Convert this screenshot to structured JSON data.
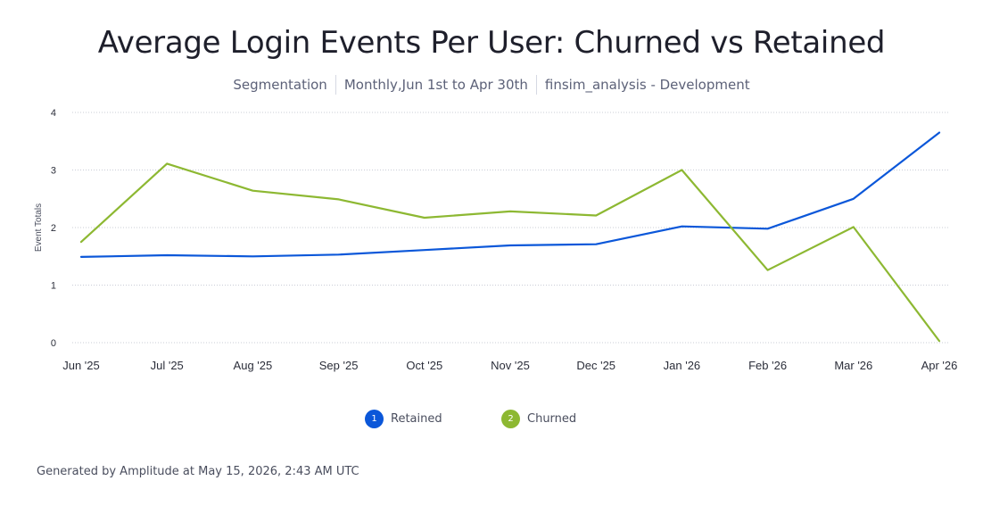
{
  "header": {
    "title": "Average Login Events Per User: Churned vs Retained",
    "subtitle_items": [
      "Segmentation",
      "Monthly,Jun 1st to Apr 30th",
      "finsim_analysis - Development"
    ]
  },
  "chart_data": {
    "type": "line",
    "title": "Average Login Events Per User: Churned vs Retained",
    "xlabel": "",
    "ylabel": "Event Totals",
    "categories": [
      "Jun '25",
      "Jul '25",
      "Aug '25",
      "Sep '25",
      "Oct '25",
      "Nov '25",
      "Dec '25",
      "Jan '26",
      "Feb '26",
      "Mar '26",
      "Apr '26"
    ],
    "yticks": [
      "0",
      "1",
      "2",
      "3",
      "4"
    ],
    "ylim": [
      0,
      4
    ],
    "grid": true,
    "legend_position": "bottom-center",
    "series": [
      {
        "name": "Retained",
        "badge": "1",
        "color": "#0b57d9",
        "values": [
          1.49,
          1.52,
          1.5,
          1.53,
          1.61,
          1.69,
          1.71,
          2.02,
          1.98,
          2.5,
          3.65
        ]
      },
      {
        "name": "Churned",
        "badge": "2",
        "color": "#8db832",
        "values": [
          1.75,
          3.11,
          2.64,
          2.49,
          2.17,
          2.28,
          2.21,
          3.0,
          1.26,
          2.01,
          0.03
        ]
      }
    ]
  },
  "footer": {
    "text": "Generated by Amplitude at May 15, 2026, 2:43 AM UTC"
  }
}
